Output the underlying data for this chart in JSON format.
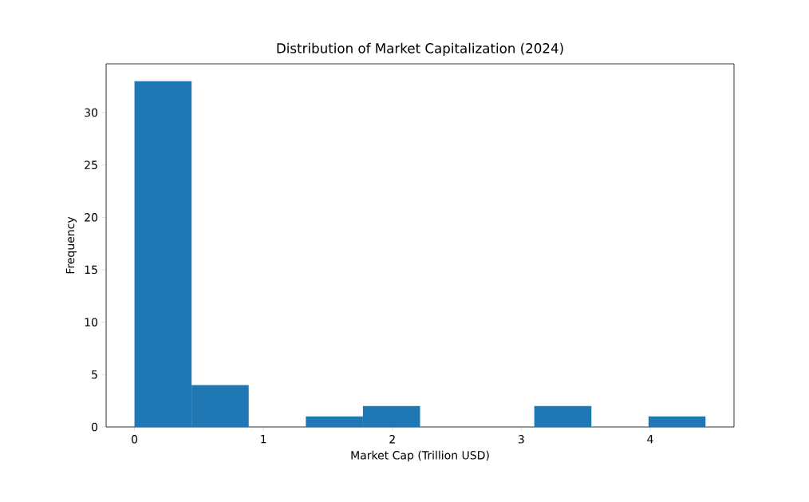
{
  "chart_data": {
    "type": "histogram",
    "title": "Distribution of Market Capitalization (2024)",
    "xlabel": "Market Cap (Trillion USD)",
    "ylabel": "Frequency",
    "bins": [
      0,
      0.443,
      0.886,
      1.329,
      1.772,
      2.215,
      2.658,
      3.101,
      3.544,
      3.987,
      4.43
    ],
    "values": [
      33,
      4,
      0,
      1,
      2,
      0,
      0,
      2,
      0,
      1
    ],
    "color": "#1f77b4",
    "xlim": [
      -0.22,
      4.65
    ],
    "ylim": [
      0,
      34.65
    ],
    "xticks": [
      0,
      1,
      2,
      3,
      4
    ],
    "yticks": [
      0,
      5,
      10,
      15,
      20,
      25,
      30
    ]
  }
}
